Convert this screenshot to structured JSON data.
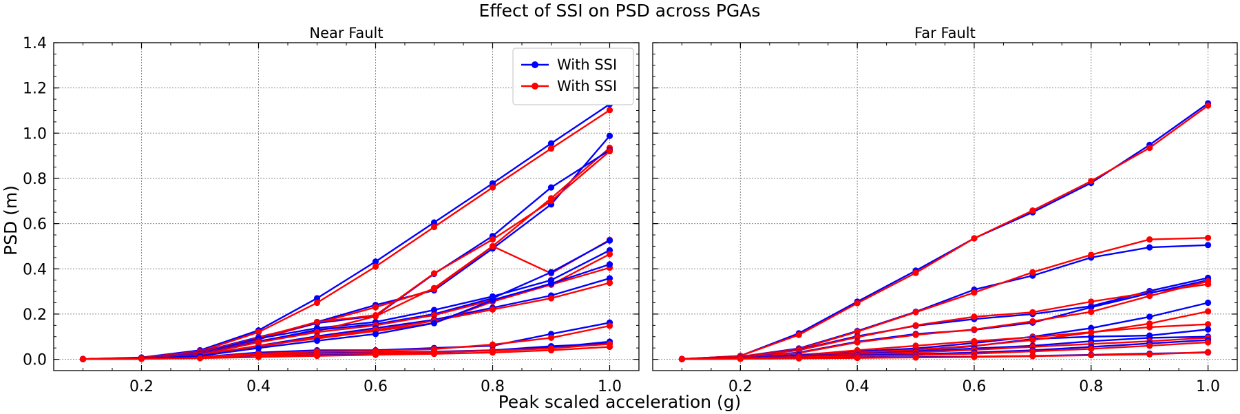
{
  "chart_data": {
    "type": "line",
    "title": "Effect of SSI on PSD across PGAs",
    "xlabel": "Peak scaled acceleration (g)",
    "ylabel": "PSD (m)",
    "xlim": [
      0.05,
      1.05
    ],
    "ylim": [
      -0.05,
      1.4
    ],
    "xticks": [
      "0.2",
      "0.4",
      "0.6",
      "0.8",
      "1.0"
    ],
    "yticks": [
      "0.0",
      "0.2",
      "0.4",
      "0.6",
      "0.8",
      "1.0",
      "1.2",
      "1.4"
    ],
    "grid": true,
    "legend_position": "top-right",
    "legend": [
      {
        "label": "With SSI",
        "color": "#0000ff"
      },
      {
        "label": "With SSI",
        "color": "#ff0000"
      }
    ],
    "colors": {
      "blue": "#0000ff",
      "red": "#ff0000"
    },
    "x": [
      0.1,
      0.2,
      0.3,
      0.4,
      0.5,
      0.6,
      0.7,
      0.8,
      0.9,
      1.0
    ],
    "panels": [
      {
        "title": "Near Fault",
        "blue": [
          [
            0.001,
            0.008,
            0.04,
            0.128,
            0.27,
            0.432,
            0.605,
            0.778,
            0.955,
            1.128
          ],
          [
            0.001,
            0.005,
            0.028,
            0.088,
            0.165,
            0.24,
            0.305,
            0.49,
            0.685,
            0.988
          ],
          [
            0.001,
            0.005,
            0.032,
            0.098,
            0.16,
            0.192,
            0.378,
            0.545,
            0.76,
            0.925
          ],
          [
            0.001,
            0.004,
            0.026,
            0.092,
            0.138,
            0.165,
            0.218,
            0.278,
            0.35,
            0.482
          ],
          [
            0.001,
            0.004,
            0.022,
            0.078,
            0.13,
            0.155,
            0.2,
            0.27,
            0.385,
            0.525
          ],
          [
            0.001,
            0.003,
            0.018,
            0.06,
            0.102,
            0.138,
            0.175,
            0.228,
            0.282,
            0.358
          ],
          [
            0.001,
            0.002,
            0.01,
            0.03,
            0.04,
            0.04,
            0.05,
            0.06,
            0.112,
            0.162
          ],
          [
            0.001,
            0.002,
            0.008,
            0.022,
            0.028,
            0.03,
            0.034,
            0.04,
            0.052,
            0.078
          ],
          [
            0.001,
            0.002,
            0.006,
            0.018,
            0.022,
            0.026,
            0.03,
            0.04,
            0.058,
            0.07
          ],
          [
            0.001,
            0.003,
            0.015,
            0.05,
            0.082,
            0.112,
            0.16,
            0.262,
            0.335,
            0.42
          ]
        ],
        "red": [
          [
            0.001,
            0.007,
            0.035,
            0.12,
            0.25,
            0.41,
            0.585,
            0.76,
            0.932,
            1.102
          ],
          [
            0.001,
            0.005,
            0.03,
            0.09,
            0.16,
            0.23,
            0.31,
            0.5,
            0.712,
            0.935
          ],
          [
            0.001,
            0.005,
            0.03,
            0.095,
            0.165,
            0.195,
            0.38,
            0.53,
            0.7,
            0.92
          ],
          [
            0.001,
            0.004,
            0.024,
            0.08,
            0.125,
            0.19,
            0.315,
            0.5,
            0.38,
            0.528
          ],
          [
            0.001,
            0.003,
            0.02,
            0.075,
            0.12,
            0.15,
            0.195,
            0.262,
            0.33,
            0.465
          ],
          [
            0.001,
            0.003,
            0.016,
            0.055,
            0.098,
            0.13,
            0.17,
            0.22,
            0.27,
            0.338
          ],
          [
            0.001,
            0.003,
            0.018,
            0.06,
            0.092,
            0.125,
            0.16,
            0.255,
            0.33,
            0.405
          ],
          [
            0.001,
            0.002,
            0.01,
            0.025,
            0.035,
            0.037,
            0.045,
            0.065,
            0.095,
            0.148
          ],
          [
            0.001,
            0.002,
            0.007,
            0.02,
            0.025,
            0.028,
            0.032,
            0.038,
            0.048,
            0.068
          ],
          [
            0.001,
            0.002,
            0.005,
            0.01,
            0.015,
            0.02,
            0.024,
            0.03,
            0.04,
            0.055
          ]
        ]
      },
      {
        "title": "Far Fault",
        "blue": [
          [
            0.001,
            0.015,
            0.115,
            0.255,
            0.392,
            0.535,
            0.65,
            0.78,
            0.948,
            1.132
          ],
          [
            0.001,
            0.012,
            0.048,
            0.125,
            0.21,
            0.308,
            0.37,
            0.45,
            0.495,
            0.505
          ],
          [
            0.001,
            0.01,
            0.042,
            0.102,
            0.148,
            0.178,
            0.2,
            0.235,
            0.302,
            0.36
          ],
          [
            0.001,
            0.008,
            0.03,
            0.078,
            0.112,
            0.13,
            0.162,
            0.23,
            0.292,
            0.35
          ],
          [
            0.001,
            0.005,
            0.02,
            0.035,
            0.048,
            0.072,
            0.1,
            0.138,
            0.188,
            0.25
          ],
          [
            0.001,
            0.005,
            0.018,
            0.028,
            0.04,
            0.058,
            0.09,
            0.1,
            0.105,
            0.132
          ],
          [
            0.001,
            0.004,
            0.014,
            0.024,
            0.034,
            0.048,
            0.06,
            0.08,
            0.095,
            0.1
          ],
          [
            0.001,
            0.003,
            0.01,
            0.018,
            0.022,
            0.03,
            0.04,
            0.055,
            0.07,
            0.085
          ],
          [
            0.001,
            0.002,
            0.005,
            0.008,
            0.01,
            0.012,
            0.015,
            0.02,
            0.025,
            0.03
          ]
        ],
        "red": [
          [
            0.001,
            0.015,
            0.108,
            0.248,
            0.382,
            0.535,
            0.658,
            0.788,
            0.935,
            1.122
          ],
          [
            0.001,
            0.012,
            0.045,
            0.122,
            0.208,
            0.295,
            0.385,
            0.462,
            0.53,
            0.537
          ],
          [
            0.001,
            0.01,
            0.04,
            0.098,
            0.15,
            0.188,
            0.208,
            0.255,
            0.295,
            0.332
          ],
          [
            0.001,
            0.007,
            0.028,
            0.075,
            0.108,
            0.132,
            0.168,
            0.21,
            0.28,
            0.345
          ],
          [
            0.001,
            0.005,
            0.018,
            0.04,
            0.06,
            0.08,
            0.098,
            0.12,
            0.142,
            0.155
          ],
          [
            0.001,
            0.004,
            0.015,
            0.03,
            0.042,
            0.06,
            0.085,
            0.118,
            0.158,
            0.212
          ],
          [
            0.001,
            0.004,
            0.012,
            0.022,
            0.03,
            0.042,
            0.055,
            0.068,
            0.08,
            0.095
          ],
          [
            0.001,
            0.003,
            0.009,
            0.015,
            0.018,
            0.025,
            0.035,
            0.046,
            0.06,
            0.075
          ],
          [
            0.001,
            0.002,
            0.004,
            0.006,
            0.008,
            0.01,
            0.014,
            0.018,
            0.022,
            0.032
          ]
        ]
      }
    ]
  }
}
